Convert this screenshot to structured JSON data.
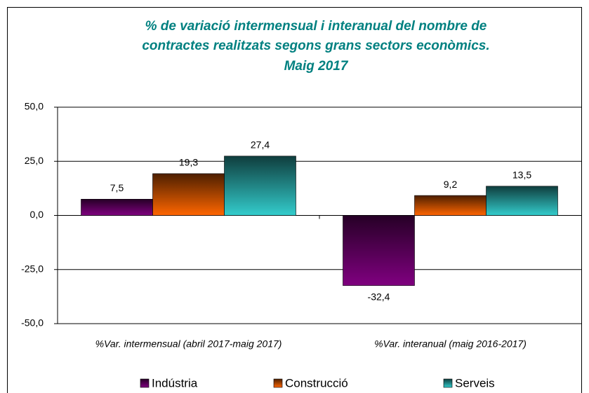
{
  "chart_data": {
    "type": "bar",
    "title": [
      "% de variació intermensual i interanual del nombre de",
      "contractes realitzats segons grans sectors econòmics.",
      "Maig 2017"
    ],
    "categories": [
      "%Var. intermensual (abril 2017-maig 2017)",
      "%Var. interanual (maig 2016-2017)"
    ],
    "series": [
      {
        "name": "Indústria",
        "color": "#800080",
        "values": [
          7.5,
          -32.4
        ],
        "value_labels": [
          "7,5",
          "-32,4"
        ]
      },
      {
        "name": "Construcció",
        "color": "#ff6600",
        "values": [
          19.3,
          9.2
        ],
        "value_labels": [
          "19,3",
          "9,2"
        ]
      },
      {
        "name": "Serveis",
        "color": "#33cccc",
        "values": [
          27.4,
          13.5
        ],
        "value_labels": [
          "27,4",
          "13,5"
        ]
      }
    ],
    "ylim": [
      -50,
      50
    ],
    "yticks": [
      {
        "value": -50,
        "label": "-50,0"
      },
      {
        "value": -25,
        "label": "-25,0"
      },
      {
        "value": 0,
        "label": "0,0"
      },
      {
        "value": 25,
        "label": "25,0"
      },
      {
        "value": 50,
        "label": "50,0"
      }
    ],
    "grid": true,
    "legend": "bottom"
  }
}
